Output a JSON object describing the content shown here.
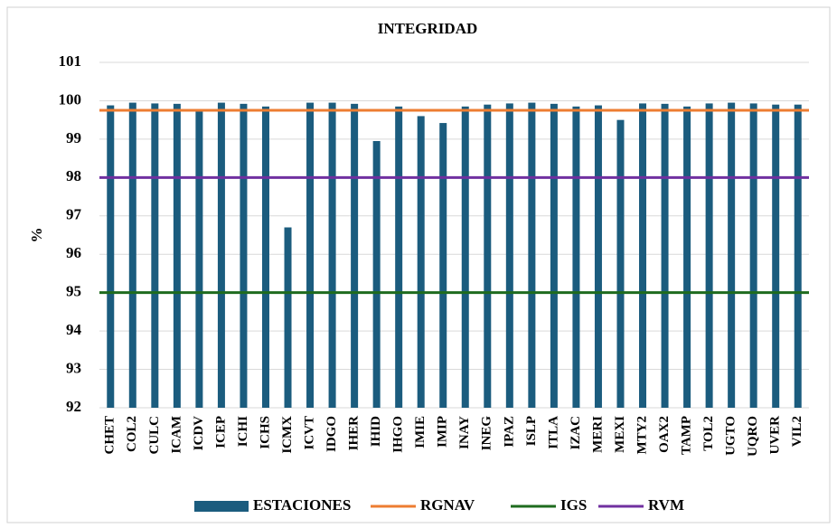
{
  "chart_data": {
    "type": "bar",
    "title": "INTEGRIDAD",
    "y_label": "%",
    "categories": [
      "CHET",
      "COL2",
      "CULC",
      "ICAM",
      "ICDV",
      "ICEP",
      "ICHI",
      "ICHS",
      "ICMX",
      "ICVT",
      "IDGO",
      "IHER",
      "IHID",
      "IHGO",
      "IMIE",
      "IMIP",
      "INAY",
      "INEG",
      "IPAZ",
      "ISLP",
      "ITLA",
      "IZAC",
      "MERI",
      "MEXI",
      "MTY2",
      "OAX2",
      "TAMP",
      "TOL2",
      "UGTO",
      "UQRO",
      "UVER",
      "VIL2"
    ],
    "series": [
      {
        "name": "ESTACIONES",
        "color": "#1b5c7e",
        "values": [
          99.88,
          99.95,
          99.93,
          99.92,
          99.72,
          99.95,
          99.92,
          99.85,
          96.7,
          99.95,
          99.95,
          99.92,
          98.95,
          99.85,
          99.6,
          99.42,
          99.85,
          99.9,
          99.93,
          99.95,
          99.92,
          99.85,
          99.88,
          99.5,
          99.93,
          99.92,
          99.85,
          99.93,
          99.95,
          99.93,
          99.9,
          99.9
        ]
      }
    ],
    "reference_lines": [
      {
        "name": "RGNAV",
        "color": "#ed7d31",
        "value": 99.75
      },
      {
        "name": "IGS",
        "color": "#1e6b1e",
        "value": 95
      },
      {
        "name": "RVM",
        "color": "#7030a0",
        "value": 98
      }
    ],
    "ylim": [
      92,
      101
    ],
    "yticks": [
      92,
      93,
      94,
      95,
      96,
      97,
      98,
      99,
      100,
      101
    ],
    "grid": true
  }
}
